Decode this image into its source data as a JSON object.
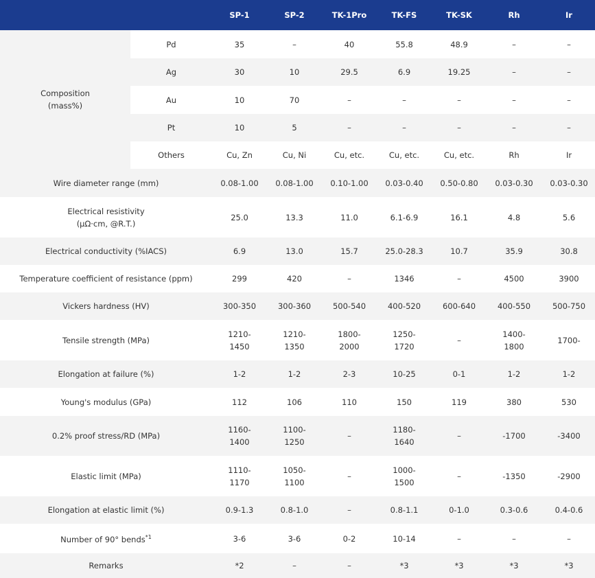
{
  "header": {
    "columns": [
      "SP-1",
      "SP-2",
      "TK-1Pro",
      "TK-FS",
      "TK-SK",
      "Rh",
      "Ir"
    ]
  },
  "table": {
    "group": {
      "label": [
        "Composition",
        "(mass%)"
      ]
    },
    "composition": [
      {
        "label": "Pd",
        "cells": [
          "35",
          "–",
          "40",
          "55.8",
          "48.9",
          "–",
          "–"
        ]
      },
      {
        "label": "Ag",
        "cells": [
          "30",
          "10",
          "29.5",
          "6.9",
          "19.25",
          "–",
          "–"
        ]
      },
      {
        "label": "Au",
        "cells": [
          "10",
          "70",
          "–",
          "–",
          "–",
          "–",
          "–"
        ]
      },
      {
        "label": "Pt",
        "cells": [
          "10",
          "5",
          "–",
          "–",
          "–",
          "–",
          "–"
        ]
      },
      {
        "label": "Others",
        "cells": [
          "Cu, Zn",
          "Cu, Ni",
          "Cu, etc.",
          "Cu, etc.",
          "Cu, etc.",
          "Rh",
          "Ir"
        ]
      }
    ],
    "rows": [
      {
        "label": "Wire diameter range (mm)",
        "cells": [
          "0.08-1.00",
          "0.08-1.00",
          "0.10-1.00",
          "0.03-0.40",
          "0.50-0.80",
          "0.03-0.30",
          "0.03-0.30"
        ]
      },
      {
        "label": [
          "Electrical resistivity",
          "(μΩ·cm, @R.T.)"
        ],
        "cells": [
          "25.0",
          "13.3",
          "11.0",
          "6.1-6.9",
          "16.1",
          "4.8",
          "5.6"
        ]
      },
      {
        "label": "Electrical conductivity (%IACS)",
        "cells": [
          "6.9",
          "13.0",
          "15.7",
          "25.0-28.3",
          "10.7",
          "35.9",
          "30.8"
        ]
      },
      {
        "label": "Temperature coefficient of resistance (ppm)",
        "cells": [
          "299",
          "420",
          "–",
          "1346",
          "–",
          "4500",
          "3900"
        ]
      },
      {
        "label": "Vickers hardness (HV)",
        "cells": [
          "300-350",
          "300-360",
          "500-540",
          "400-520",
          "600-640",
          "400-550",
          "500-750"
        ]
      },
      {
        "label": "Tensile strength (MPa)",
        "cells": [
          [
            "1210-",
            "1450"
          ],
          [
            "1210-",
            "1350"
          ],
          [
            "1800-",
            "2000"
          ],
          [
            "1250-",
            "1720"
          ],
          "–",
          [
            "1400-",
            "1800"
          ],
          "1700-"
        ]
      },
      {
        "label": "Elongation at failure (%)",
        "cells": [
          "1-2",
          "1-2",
          "2-3",
          "10-25",
          "0-1",
          "1-2",
          "1-2"
        ]
      },
      {
        "label": "Young's modulus (GPa)",
        "cells": [
          "112",
          "106",
          "110",
          "150",
          "119",
          "380",
          "530"
        ]
      },
      {
        "label": "0.2% proof stress/RD  (MPa)",
        "cells": [
          [
            "1160-",
            "1400"
          ],
          [
            "1100-",
            "1250"
          ],
          "–",
          [
            "1180-",
            "1640"
          ],
          "–",
          "-1700",
          "-3400"
        ]
      },
      {
        "label": "Elastic limit (MPa)",
        "cells": [
          [
            "1110-",
            "1170"
          ],
          [
            "1050-",
            "1100"
          ],
          "–",
          [
            "1000-",
            "1500"
          ],
          "–",
          "-1350",
          "-2900"
        ]
      },
      {
        "label": "Elongation at elastic limit (%)",
        "cells": [
          "0.9-1.3",
          "0.8-1.0",
          "–",
          "0.8-1.1",
          "0-1.0",
          "0.3-0.6",
          "0.4-0.6"
        ]
      },
      {
        "label": "Number of 90° bends",
        "sup": "*1",
        "cells": [
          "3-6",
          "3-6",
          "0-2",
          "10-14",
          "–",
          "–",
          "–"
        ]
      },
      {
        "label": "Remarks",
        "cells": [
          "*2",
          "–",
          "–",
          "*3",
          "*3",
          "*3",
          "*3"
        ]
      }
    ]
  }
}
